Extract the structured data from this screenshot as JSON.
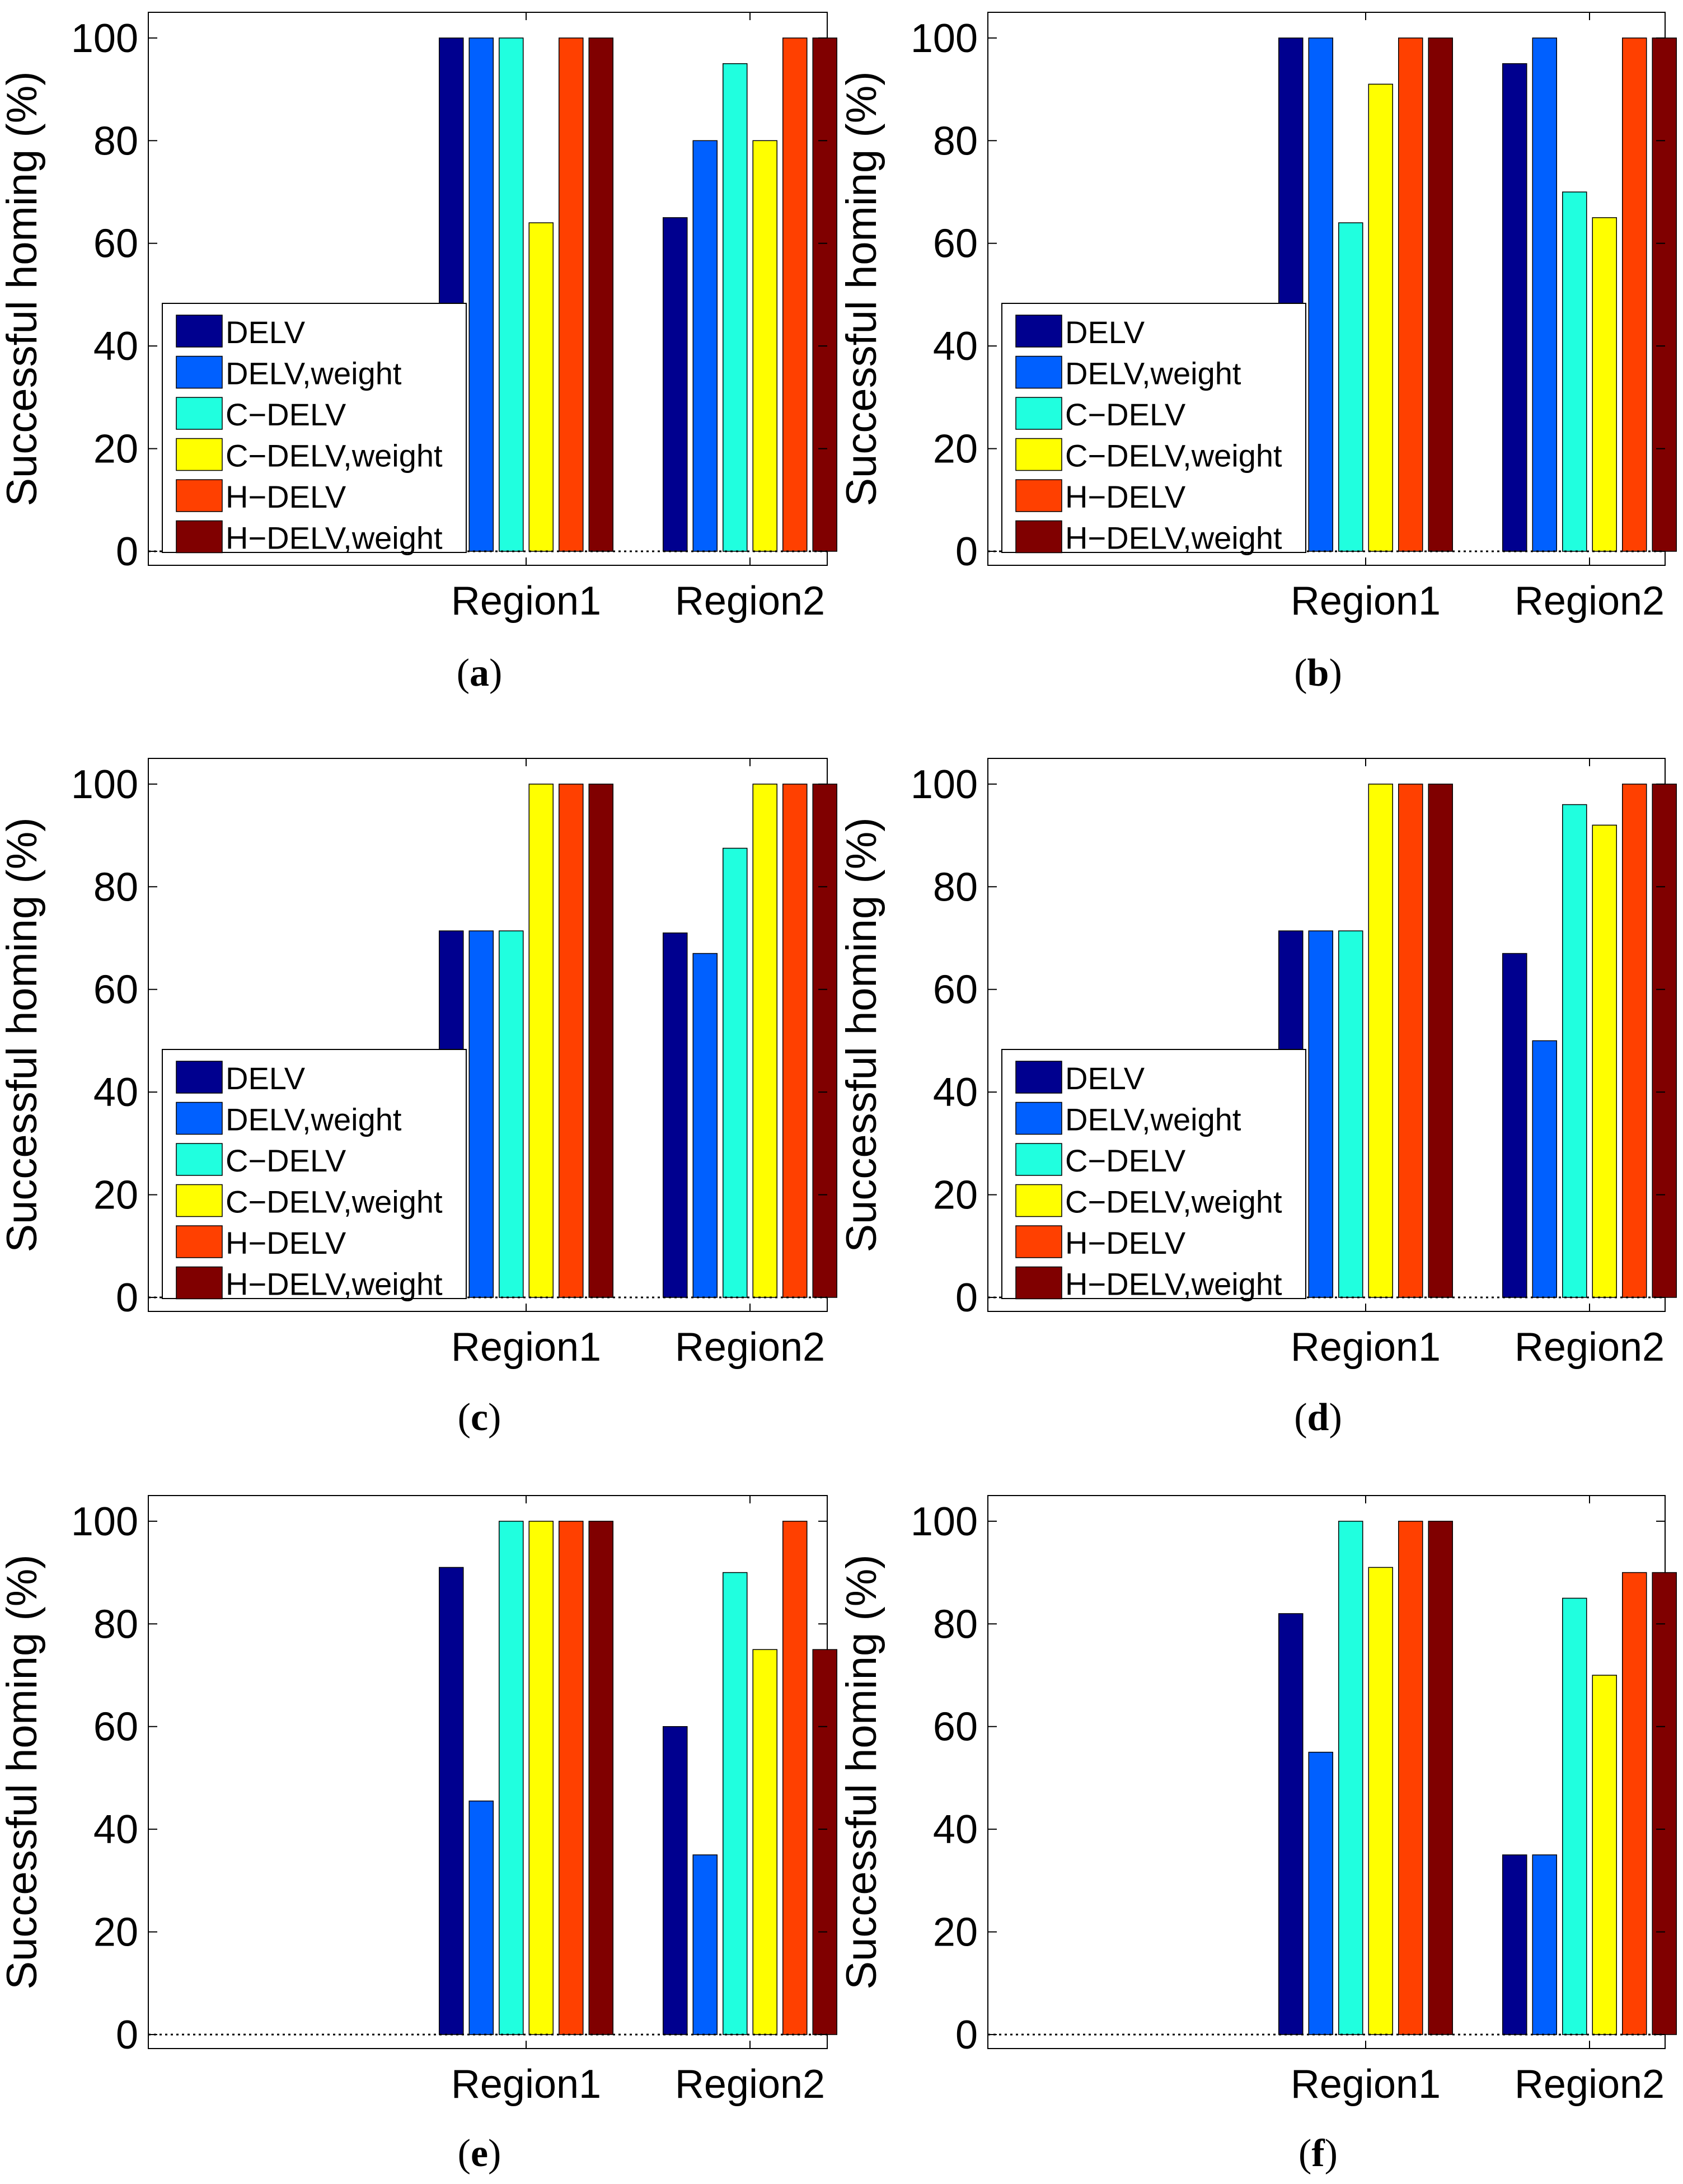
{
  "figure": {
    "ylabel": "Successful homing (%)",
    "categories": [
      "Region1",
      "Region2"
    ],
    "yticks": [
      "0",
      "20",
      "40",
      "60",
      "80",
      "100"
    ],
    "series_names": [
      "DELV",
      "DELV,weight",
      "C−DELV",
      "C−DELV,weight",
      "H−DELV",
      "H−DELV,weight"
    ],
    "series_colors": [
      "#00008f",
      "#0060ff",
      "#20ffdf",
      "#ffff00",
      "#ff4000",
      "#800000"
    ]
  },
  "chart_data": [
    {
      "type": "bar",
      "panel": "(a)",
      "categories": [
        "Region1",
        "Region2"
      ],
      "ylabel": "Successful homing (%)",
      "ylim": [
        0,
        105
      ],
      "legend": "lower-left",
      "series": [
        {
          "name": "DELV",
          "values": [
            100,
            65
          ]
        },
        {
          "name": "DELV,weight",
          "values": [
            100,
            80
          ]
        },
        {
          "name": "C−DELV",
          "values": [
            100,
            95
          ]
        },
        {
          "name": "C−DELV,weight",
          "values": [
            64,
            80
          ]
        },
        {
          "name": "H−DELV",
          "values": [
            100,
            100
          ]
        },
        {
          "name": "H−DELV,weight",
          "values": [
            100,
            100
          ]
        }
      ]
    },
    {
      "type": "bar",
      "panel": "(b)",
      "categories": [
        "Region1",
        "Region2"
      ],
      "ylabel": "Successful homing (%)",
      "ylim": [
        0,
        105
      ],
      "legend": "lower-left",
      "series": [
        {
          "name": "DELV",
          "values": [
            100,
            95
          ]
        },
        {
          "name": "DELV,weight",
          "values": [
            100,
            100
          ]
        },
        {
          "name": "C−DELV",
          "values": [
            64,
            70
          ]
        },
        {
          "name": "C−DELV,weight",
          "values": [
            91,
            65
          ]
        },
        {
          "name": "H−DELV",
          "values": [
            100,
            100
          ]
        },
        {
          "name": "H−DELV,weight",
          "values": [
            100,
            100
          ]
        }
      ]
    },
    {
      "type": "bar",
      "panel": "(c)",
      "categories": [
        "Region1",
        "Region2"
      ],
      "ylabel": "Successful homing (%)",
      "ylim": [
        0,
        105
      ],
      "legend": "lower-left",
      "series": [
        {
          "name": "DELV",
          "values": [
            71.4,
            71
          ]
        },
        {
          "name": "DELV,weight",
          "values": [
            71.4,
            67
          ]
        },
        {
          "name": "C−DELV",
          "values": [
            71.4,
            87.5
          ]
        },
        {
          "name": "C−DELV,weight",
          "values": [
            100,
            100
          ]
        },
        {
          "name": "H−DELV",
          "values": [
            100,
            100
          ]
        },
        {
          "name": "H−DELV,weight",
          "values": [
            100,
            100
          ]
        }
      ]
    },
    {
      "type": "bar",
      "panel": "(d)",
      "categories": [
        "Region1",
        "Region2"
      ],
      "ylabel": "Successful homing (%)",
      "ylim": [
        0,
        105
      ],
      "legend": "lower-left",
      "series": [
        {
          "name": "DELV",
          "values": [
            71.4,
            67
          ]
        },
        {
          "name": "DELV,weight",
          "values": [
            71.4,
            50
          ]
        },
        {
          "name": "C−DELV",
          "values": [
            71.4,
            96
          ]
        },
        {
          "name": "C−DELV,weight",
          "values": [
            100,
            92
          ]
        },
        {
          "name": "H−DELV",
          "values": [
            100,
            100
          ]
        },
        {
          "name": "H−DELV,weight",
          "values": [
            100,
            100
          ]
        }
      ]
    },
    {
      "type": "bar",
      "panel": "(e)",
      "categories": [
        "Region1",
        "Region2"
      ],
      "ylabel": "Successful homing (%)",
      "ylim": [
        0,
        105
      ],
      "legend": "none",
      "series": [
        {
          "name": "DELV",
          "values": [
            91,
            60
          ]
        },
        {
          "name": "DELV,weight",
          "values": [
            45.5,
            35
          ]
        },
        {
          "name": "C−DELV",
          "values": [
            100,
            90
          ]
        },
        {
          "name": "C−DELV,weight",
          "values": [
            100,
            75
          ]
        },
        {
          "name": "H−DELV",
          "values": [
            100,
            100
          ]
        },
        {
          "name": "H−DELV,weight",
          "values": [
            100,
            75
          ]
        }
      ]
    },
    {
      "type": "bar",
      "panel": "(f)",
      "categories": [
        "Region1",
        "Region2"
      ],
      "ylabel": "Successful homing (%)",
      "ylim": [
        0,
        105
      ],
      "legend": "none",
      "series": [
        {
          "name": "DELV",
          "values": [
            82,
            35
          ]
        },
        {
          "name": "DELV,weight",
          "values": [
            55,
            35
          ]
        },
        {
          "name": "C−DELV",
          "values": [
            100,
            85
          ]
        },
        {
          "name": "C−DELV,weight",
          "values": [
            91,
            70
          ]
        },
        {
          "name": "H−DELV",
          "values": [
            100,
            90
          ]
        },
        {
          "name": "H−DELV,weight",
          "values": [
            100,
            90
          ]
        }
      ]
    }
  ]
}
